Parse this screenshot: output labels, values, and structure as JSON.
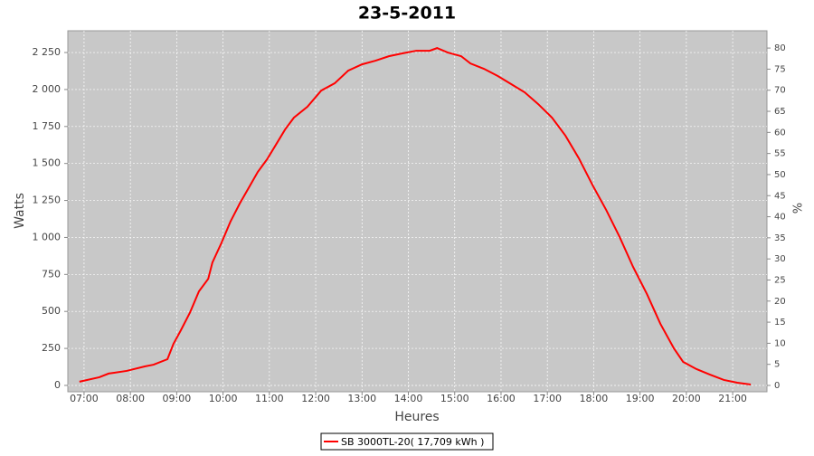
{
  "chart_data": {
    "type": "line",
    "title": "23-5-2011",
    "x_label": "Heures",
    "y_label": "Watts",
    "y2_label": "%",
    "xlim": [
      6.65,
      21.74
    ],
    "xticks": [
      {
        "value": 7,
        "label": "07:00"
      },
      {
        "value": 8,
        "label": "08:00"
      },
      {
        "value": 9,
        "label": "09:00"
      },
      {
        "value": 10,
        "label": "10:00"
      },
      {
        "value": 11,
        "label": "11:00"
      },
      {
        "value": 12,
        "label": "12:00"
      },
      {
        "value": 13,
        "label": "13:00"
      },
      {
        "value": 14,
        "label": "14:00"
      },
      {
        "value": 15,
        "label": "15:00"
      },
      {
        "value": 16,
        "label": "16:00"
      },
      {
        "value": 17,
        "label": "17:00"
      },
      {
        "value": 18,
        "label": "18:00"
      },
      {
        "value": 19,
        "label": "19:00"
      },
      {
        "value": 20,
        "label": "20:00"
      },
      {
        "value": 21,
        "label": "21:00"
      }
    ],
    "ylim": [
      -43,
      2397
    ],
    "yticks": [
      0,
      250,
      500,
      750,
      {
        "value": 1000,
        "label": "1 000"
      },
      {
        "value": 1250,
        "label": "1 250"
      },
      {
        "value": 1500,
        "label": "1 500"
      },
      {
        "value": 1750,
        "label": "1 750"
      },
      {
        "value": 2000,
        "label": "2 000"
      },
      {
        "value": 2250,
        "label": "2 250"
      }
    ],
    "y2lim": [
      -1.5,
      84.1
    ],
    "y2ticks": [
      0,
      5,
      10,
      15,
      20,
      25,
      30,
      35,
      40,
      45,
      50,
      55,
      60,
      65,
      70,
      75,
      80
    ],
    "grid": true,
    "x": [
      6.9,
      7.33,
      7.53,
      7.92,
      8.31,
      8.5,
      8.8,
      8.93,
      9.09,
      9.29,
      9.48,
      9.68,
      9.77,
      9.97,
      10.16,
      10.36,
      10.55,
      10.75,
      10.95,
      11.14,
      11.34,
      11.53,
      11.82,
      12.12,
      12.41,
      12.7,
      13.0,
      13.29,
      13.58,
      13.87,
      14.17,
      14.46,
      14.62,
      14.85,
      15.14,
      15.34,
      15.63,
      15.93,
      16.22,
      16.51,
      16.8,
      17.1,
      17.39,
      17.68,
      17.98,
      18.27,
      18.56,
      18.85,
      19.15,
      19.44,
      19.73,
      19.93,
      20.22,
      20.51,
      20.81,
      21.1,
      21.39
    ],
    "series": [
      {
        "name": "SB 3000TL-20( 17,709 kWh )",
        "color": "#ff0000",
        "values": [
          25,
          55,
          80,
          98,
          128,
          140,
          177,
          281,
          373,
          495,
          636,
          720,
          830,
          966,
          1107,
          1229,
          1333,
          1443,
          1528,
          1626,
          1730,
          1810,
          1883,
          1993,
          2042,
          2127,
          2170,
          2195,
          2225,
          2244,
          2262,
          2262,
          2280,
          2250,
          2225,
          2176,
          2140,
          2091,
          2036,
          1981,
          1902,
          1810,
          1688,
          1535,
          1351,
          1186,
          1003,
          801,
          617,
          416,
          251,
          159,
          110,
          73,
          37,
          18,
          6
        ]
      }
    ]
  }
}
